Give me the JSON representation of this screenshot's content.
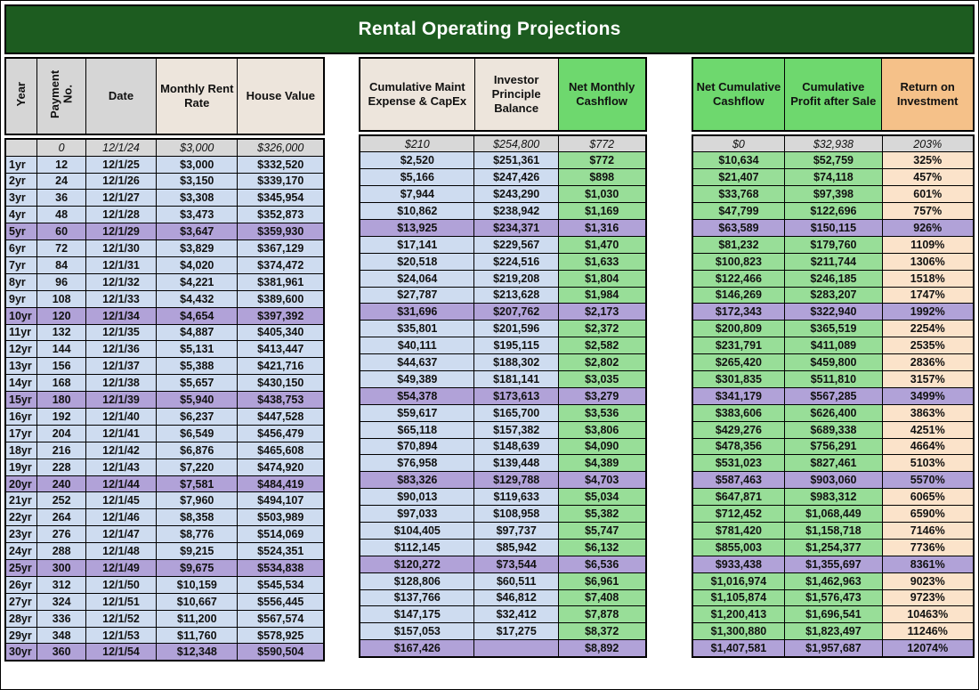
{
  "title": "Rental Operating Projections",
  "groups": [
    {
      "headers": [
        "Year",
        "Payment No.",
        "Date",
        "Monthly Rent Rate",
        "House Value"
      ]
    },
    {
      "headers": [
        "Cumulative Maint Expense & CapEx",
        "Investor Principle Balance",
        "Net Monthly Cashflow"
      ]
    },
    {
      "headers": [
        "Net Cumulative Cashflow",
        "Cumulative Profit after Sale",
        "Return on Investment"
      ]
    }
  ],
  "rows": [
    {
      "year": "",
      "payment": "0",
      "date": "12/1/24",
      "rent": "$3,000",
      "house": "$326,000",
      "maint": "$210",
      "principal": "$254,800",
      "net_monthly": "$772",
      "net_cum": "$0",
      "profit": "$32,938",
      "roi": "203%",
      "style": "initial"
    },
    {
      "year": "1yr",
      "payment": "12",
      "date": "12/1/25",
      "rent": "$3,000",
      "house": "$332,520",
      "maint": "$2,520",
      "principal": "$251,361",
      "net_monthly": "$772",
      "net_cum": "$10,634",
      "profit": "$52,759",
      "roi": "325%",
      "style": ""
    },
    {
      "year": "2yr",
      "payment": "24",
      "date": "12/1/26",
      "rent": "$3,150",
      "house": "$339,170",
      "maint": "$5,166",
      "principal": "$247,426",
      "net_monthly": "$898",
      "net_cum": "$21,407",
      "profit": "$74,118",
      "roi": "457%",
      "style": ""
    },
    {
      "year": "3yr",
      "payment": "36",
      "date": "12/1/27",
      "rent": "$3,308",
      "house": "$345,954",
      "maint": "$7,944",
      "principal": "$243,290",
      "net_monthly": "$1,030",
      "net_cum": "$33,768",
      "profit": "$97,398",
      "roi": "601%",
      "style": ""
    },
    {
      "year": "4yr",
      "payment": "48",
      "date": "12/1/28",
      "rent": "$3,473",
      "house": "$352,873",
      "maint": "$10,862",
      "principal": "$238,942",
      "net_monthly": "$1,169",
      "net_cum": "$47,799",
      "profit": "$122,696",
      "roi": "757%",
      "style": ""
    },
    {
      "year": "5yr",
      "payment": "60",
      "date": "12/1/29",
      "rent": "$3,647",
      "house": "$359,930",
      "maint": "$13,925",
      "principal": "$234,371",
      "net_monthly": "$1,316",
      "net_cum": "$63,589",
      "profit": "$150,115",
      "roi": "926%",
      "style": "milestone"
    },
    {
      "year": "6yr",
      "payment": "72",
      "date": "12/1/30",
      "rent": "$3,829",
      "house": "$367,129",
      "maint": "$17,141",
      "principal": "$229,567",
      "net_monthly": "$1,470",
      "net_cum": "$81,232",
      "profit": "$179,760",
      "roi": "1109%",
      "style": ""
    },
    {
      "year": "7yr",
      "payment": "84",
      "date": "12/1/31",
      "rent": "$4,020",
      "house": "$374,472",
      "maint": "$20,518",
      "principal": "$224,516",
      "net_monthly": "$1,633",
      "net_cum": "$100,823",
      "profit": "$211,744",
      "roi": "1306%",
      "style": ""
    },
    {
      "year": "8yr",
      "payment": "96",
      "date": "12/1/32",
      "rent": "$4,221",
      "house": "$381,961",
      "maint": "$24,064",
      "principal": "$219,208",
      "net_monthly": "$1,804",
      "net_cum": "$122,466",
      "profit": "$246,185",
      "roi": "1518%",
      "style": ""
    },
    {
      "year": "9yr",
      "payment": "108",
      "date": "12/1/33",
      "rent": "$4,432",
      "house": "$389,600",
      "maint": "$27,787",
      "principal": "$213,628",
      "net_monthly": "$1,984",
      "net_cum": "$146,269",
      "profit": "$283,207",
      "roi": "1747%",
      "style": ""
    },
    {
      "year": "10yr",
      "payment": "120",
      "date": "12/1/34",
      "rent": "$4,654",
      "house": "$397,392",
      "maint": "$31,696",
      "principal": "$207,762",
      "net_monthly": "$2,173",
      "net_cum": "$172,343",
      "profit": "$322,940",
      "roi": "1992%",
      "style": "milestone"
    },
    {
      "year": "11yr",
      "payment": "132",
      "date": "12/1/35",
      "rent": "$4,887",
      "house": "$405,340",
      "maint": "$35,801",
      "principal": "$201,596",
      "net_monthly": "$2,372",
      "net_cum": "$200,809",
      "profit": "$365,519",
      "roi": "2254%",
      "style": ""
    },
    {
      "year": "12yr",
      "payment": "144",
      "date": "12/1/36",
      "rent": "$5,131",
      "house": "$413,447",
      "maint": "$40,111",
      "principal": "$195,115",
      "net_monthly": "$2,582",
      "net_cum": "$231,791",
      "profit": "$411,089",
      "roi": "2535%",
      "style": ""
    },
    {
      "year": "13yr",
      "payment": "156",
      "date": "12/1/37",
      "rent": "$5,388",
      "house": "$421,716",
      "maint": "$44,637",
      "principal": "$188,302",
      "net_monthly": "$2,802",
      "net_cum": "$265,420",
      "profit": "$459,800",
      "roi": "2836%",
      "style": ""
    },
    {
      "year": "14yr",
      "payment": "168",
      "date": "12/1/38",
      "rent": "$5,657",
      "house": "$430,150",
      "maint": "$49,389",
      "principal": "$181,141",
      "net_monthly": "$3,035",
      "net_cum": "$301,835",
      "profit": "$511,810",
      "roi": "3157%",
      "style": ""
    },
    {
      "year": "15yr",
      "payment": "180",
      "date": "12/1/39",
      "rent": "$5,940",
      "house": "$438,753",
      "maint": "$54,378",
      "principal": "$173,613",
      "net_monthly": "$3,279",
      "net_cum": "$341,179",
      "profit": "$567,285",
      "roi": "3499%",
      "style": "milestone"
    },
    {
      "year": "16yr",
      "payment": "192",
      "date": "12/1/40",
      "rent": "$6,237",
      "house": "$447,528",
      "maint": "$59,617",
      "principal": "$165,700",
      "net_monthly": "$3,536",
      "net_cum": "$383,606",
      "profit": "$626,400",
      "roi": "3863%",
      "style": ""
    },
    {
      "year": "17yr",
      "payment": "204",
      "date": "12/1/41",
      "rent": "$6,549",
      "house": "$456,479",
      "maint": "$65,118",
      "principal": "$157,382",
      "net_monthly": "$3,806",
      "net_cum": "$429,276",
      "profit": "$689,338",
      "roi": "4251%",
      "style": ""
    },
    {
      "year": "18yr",
      "payment": "216",
      "date": "12/1/42",
      "rent": "$6,876",
      "house": "$465,608",
      "maint": "$70,894",
      "principal": "$148,639",
      "net_monthly": "$4,090",
      "net_cum": "$478,356",
      "profit": "$756,291",
      "roi": "4664%",
      "style": ""
    },
    {
      "year": "19yr",
      "payment": "228",
      "date": "12/1/43",
      "rent": "$7,220",
      "house": "$474,920",
      "maint": "$76,958",
      "principal": "$139,448",
      "net_monthly": "$4,389",
      "net_cum": "$531,023",
      "profit": "$827,461",
      "roi": "5103%",
      "style": ""
    },
    {
      "year": "20yr",
      "payment": "240",
      "date": "12/1/44",
      "rent": "$7,581",
      "house": "$484,419",
      "maint": "$83,326",
      "principal": "$129,788",
      "net_monthly": "$4,703",
      "net_cum": "$587,463",
      "profit": "$903,060",
      "roi": "5570%",
      "style": "milestone"
    },
    {
      "year": "21yr",
      "payment": "252",
      "date": "12/1/45",
      "rent": "$7,960",
      "house": "$494,107",
      "maint": "$90,013",
      "principal": "$119,633",
      "net_monthly": "$5,034",
      "net_cum": "$647,871",
      "profit": "$983,312",
      "roi": "6065%",
      "style": ""
    },
    {
      "year": "22yr",
      "payment": "264",
      "date": "12/1/46",
      "rent": "$8,358",
      "house": "$503,989",
      "maint": "$97,033",
      "principal": "$108,958",
      "net_monthly": "$5,382",
      "net_cum": "$712,452",
      "profit": "$1,068,449",
      "roi": "6590%",
      "style": ""
    },
    {
      "year": "23yr",
      "payment": "276",
      "date": "12/1/47",
      "rent": "$8,776",
      "house": "$514,069",
      "maint": "$104,405",
      "principal": "$97,737",
      "net_monthly": "$5,747",
      "net_cum": "$781,420",
      "profit": "$1,158,718",
      "roi": "7146%",
      "style": ""
    },
    {
      "year": "24yr",
      "payment": "288",
      "date": "12/1/48",
      "rent": "$9,215",
      "house": "$524,351",
      "maint": "$112,145",
      "principal": "$85,942",
      "net_monthly": "$6,132",
      "net_cum": "$855,003",
      "profit": "$1,254,377",
      "roi": "7736%",
      "style": ""
    },
    {
      "year": "25yr",
      "payment": "300",
      "date": "12/1/49",
      "rent": "$9,675",
      "house": "$534,838",
      "maint": "$120,272",
      "principal": "$73,544",
      "net_monthly": "$6,536",
      "net_cum": "$933,438",
      "profit": "$1,355,697",
      "roi": "8361%",
      "style": "milestone"
    },
    {
      "year": "26yr",
      "payment": "312",
      "date": "12/1/50",
      "rent": "$10,159",
      "house": "$545,534",
      "maint": "$128,806",
      "principal": "$60,511",
      "net_monthly": "$6,961",
      "net_cum": "$1,016,974",
      "profit": "$1,462,963",
      "roi": "9023%",
      "style": ""
    },
    {
      "year": "27yr",
      "payment": "324",
      "date": "12/1/51",
      "rent": "$10,667",
      "house": "$556,445",
      "maint": "$137,766",
      "principal": "$46,812",
      "net_monthly": "$7,408",
      "net_cum": "$1,105,874",
      "profit": "$1,576,473",
      "roi": "9723%",
      "style": ""
    },
    {
      "year": "28yr",
      "payment": "336",
      "date": "12/1/52",
      "rent": "$11,200",
      "house": "$567,574",
      "maint": "$147,175",
      "principal": "$32,412",
      "net_monthly": "$7,878",
      "net_cum": "$1,200,413",
      "profit": "$1,696,541",
      "roi": "10463%",
      "style": ""
    },
    {
      "year": "29yr",
      "payment": "348",
      "date": "12/1/53",
      "rent": "$11,760",
      "house": "$578,925",
      "maint": "$157,053",
      "principal": "$17,275",
      "net_monthly": "$8,372",
      "net_cum": "$1,300,880",
      "profit": "$1,823,497",
      "roi": "11246%",
      "style": ""
    },
    {
      "year": "30yr",
      "payment": "360",
      "date": "12/1/54",
      "rent": "$12,348",
      "house": "$590,504",
      "maint": "$167,426",
      "principal": "",
      "net_monthly": "$8,892",
      "net_cum": "$1,407,581",
      "profit": "$1,957,687",
      "roi": "12074%",
      "style": "milestone"
    }
  ],
  "colors": {
    "banner_green": "#1d5c20",
    "header_gray": "#d6d6d6",
    "header_beige": "#ede5dc",
    "header_green": "#6ed86e",
    "header_orange": "#f5c189",
    "row_blue": "#cedcf0",
    "row_green": "#98de98",
    "row_peach": "#fbe3ca",
    "row_highlight_purple": "#b1a2d8",
    "initial_row_gray": "#d8d8d8"
  }
}
